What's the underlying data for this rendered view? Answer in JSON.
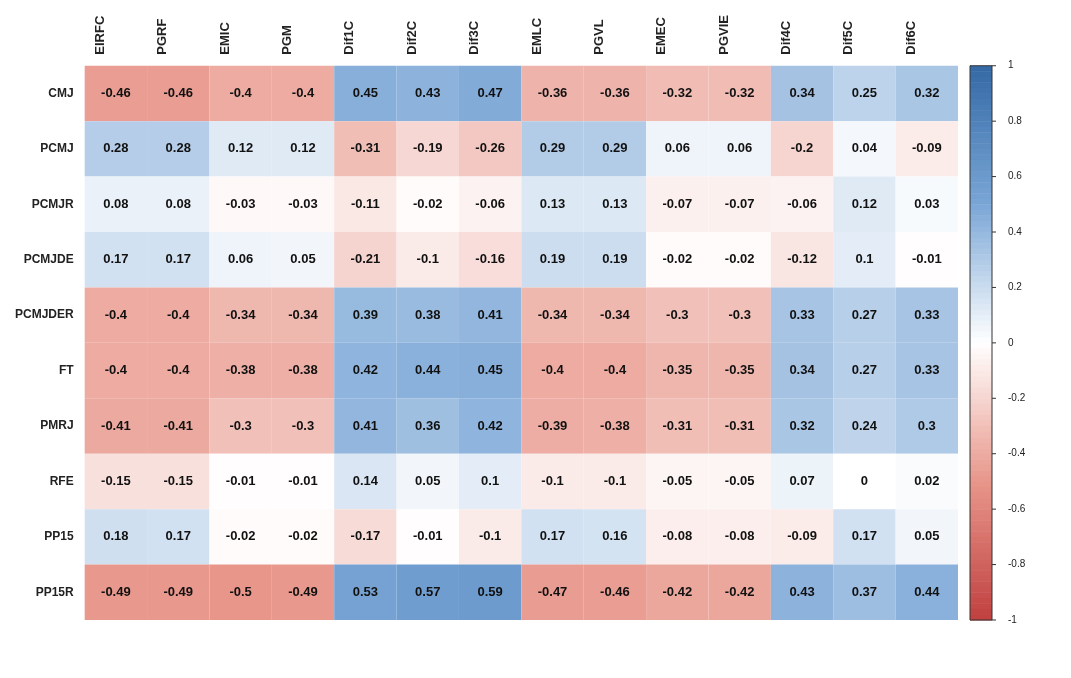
{
  "chart_data": {
    "type": "heatmap",
    "categories": [
      "EIRFC",
      "PGRF",
      "EMIC",
      "PGM",
      "Dif1C",
      "Dif2C",
      "Dif3C",
      "EMLC",
      "PGVL",
      "EMEC",
      "PGVIE",
      "Dif4C",
      "Dif5C",
      "Dif6C"
    ],
    "y_categories": [
      "CMJ",
      "PCMJ",
      "PCMJR",
      "PCMJDE",
      "PCMJDER",
      "FT",
      "PMRJ",
      "RFE",
      "PP15",
      "PP15R"
    ],
    "cells": [
      [
        -0.46,
        -0.46,
        -0.4,
        -0.4,
        0.45,
        0.43,
        0.47,
        -0.36,
        -0.36,
        -0.32,
        -0.32,
        0.34,
        0.25,
        0.32
      ],
      [
        0.28,
        0.28,
        0.12,
        0.12,
        -0.31,
        -0.19,
        -0.26,
        0.29,
        0.29,
        0.06,
        0.06,
        -0.2,
        0.04,
        -0.09
      ],
      [
        0.08,
        0.08,
        -0.03,
        -0.03,
        -0.11,
        -0.02,
        -0.06,
        0.13,
        0.13,
        -0.07,
        -0.07,
        -0.06,
        0.12,
        0.03
      ],
      [
        0.17,
        0.17,
        0.06,
        0.05,
        -0.21,
        -0.1,
        -0.16,
        0.19,
        0.19,
        -0.02,
        -0.02,
        -0.12,
        0.1,
        -0.01
      ],
      [
        -0.4,
        -0.4,
        -0.34,
        -0.34,
        0.39,
        0.38,
        0.41,
        -0.34,
        -0.34,
        -0.3,
        -0.3,
        0.33,
        0.27,
        0.33
      ],
      [
        -0.4,
        -0.4,
        -0.38,
        -0.38,
        0.42,
        0.44,
        0.45,
        -0.4,
        -0.4,
        -0.35,
        -0.35,
        0.34,
        0.27,
        0.33
      ],
      [
        -0.41,
        -0.41,
        -0.3,
        -0.3,
        0.41,
        0.36,
        0.42,
        -0.39,
        -0.38,
        -0.31,
        -0.31,
        0.32,
        0.24,
        0.3
      ],
      [
        -0.15,
        -0.15,
        -0.01,
        -0.01,
        0.14,
        0.05,
        0.1,
        -0.1,
        -0.1,
        -0.05,
        -0.05,
        0.07,
        0,
        0.02
      ],
      [
        0.18,
        0.17,
        -0.02,
        -0.02,
        -0.17,
        -0.01,
        -0.1,
        0.17,
        0.16,
        -0.08,
        -0.08,
        -0.09,
        0.17,
        0.05
      ],
      [
        -0.49,
        -0.49,
        -0.5,
        -0.49,
        0.53,
        0.57,
        0.59,
        -0.47,
        -0.46,
        -0.42,
        -0.42,
        0.43,
        0.37,
        0.44
      ]
    ],
    "clim": [
      -1,
      1
    ],
    "cticks": [
      -1,
      -0.8,
      -0.6,
      -0.4,
      -0.2,
      0,
      0.2,
      0.4,
      0.6,
      0.8,
      1
    ],
    "data_labels": true
  }
}
